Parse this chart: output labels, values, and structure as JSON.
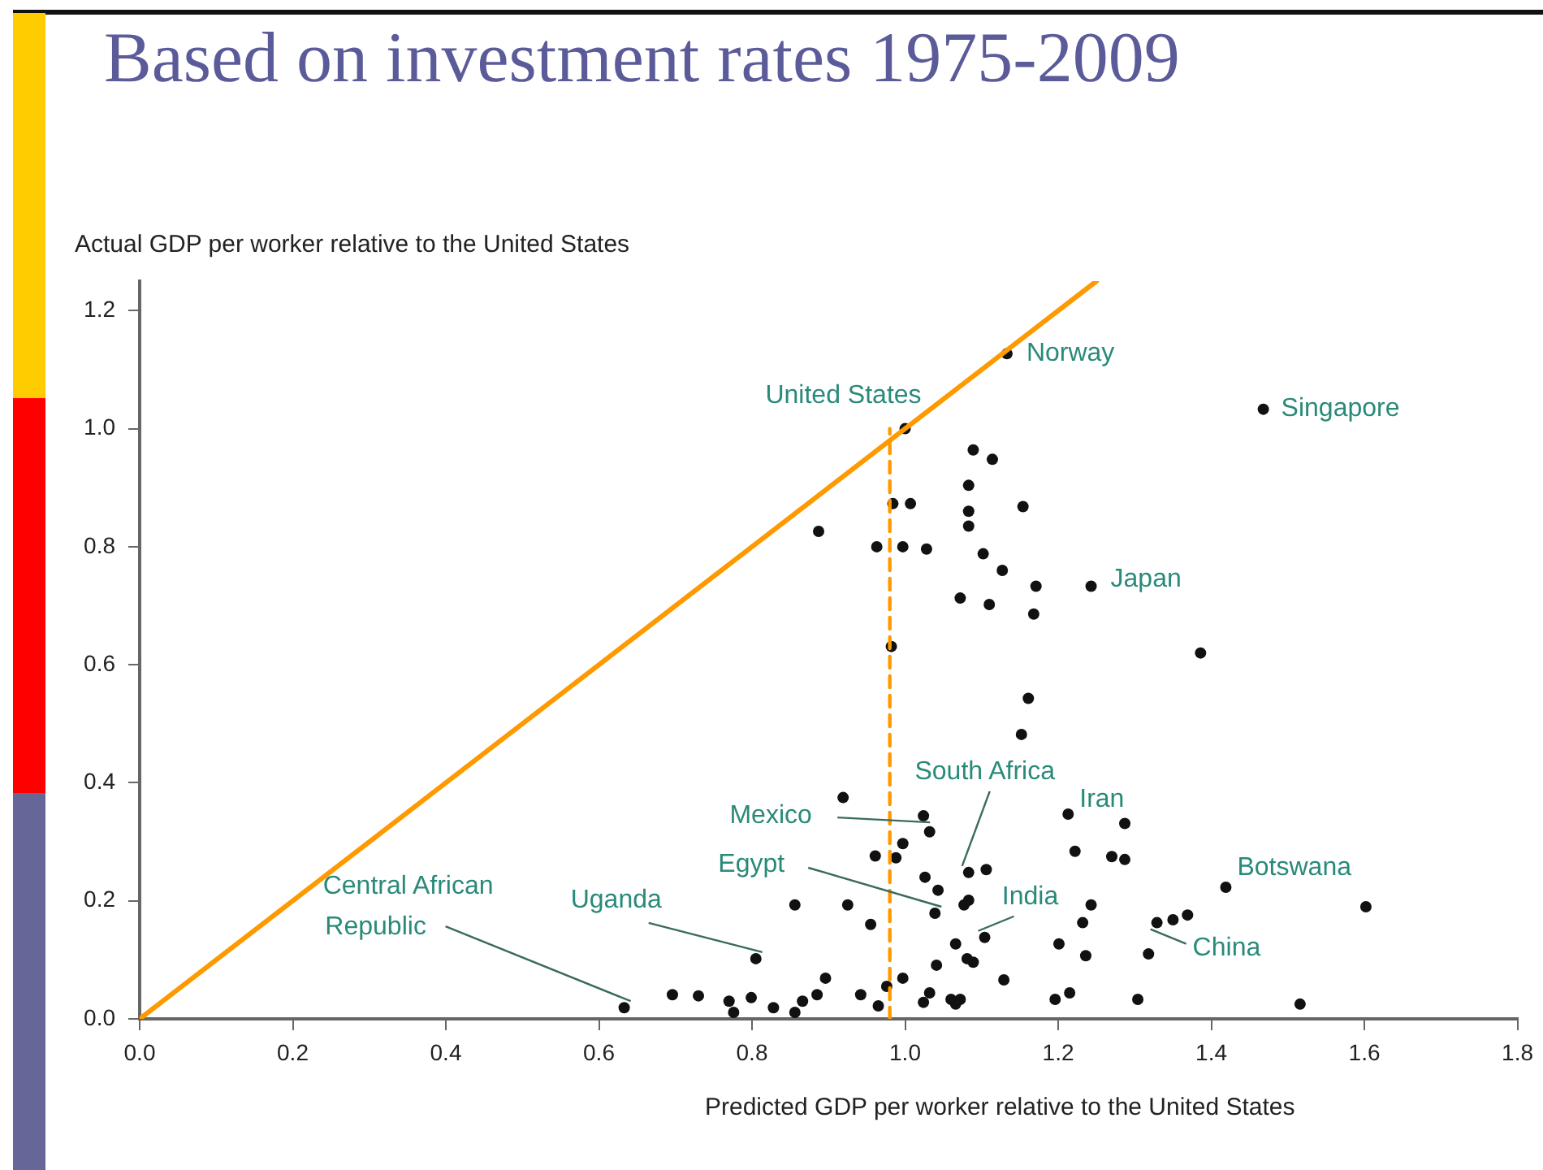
{
  "chart_data": {
    "type": "scatter",
    "title": "Based on investment rates 1975-2009",
    "ylabel": "Actual GDP per worker relative to the United States",
    "xlabel": "Predicted GDP per worker relative to the United States",
    "xlim": [
      0,
      1.8
    ],
    "xticks": [
      {
        "value": 0,
        "label": "0.0"
      },
      {
        "value": 0.2,
        "label": "0.2"
      },
      {
        "value": 0.4,
        "label": "0.4"
      },
      {
        "value": 0.6,
        "label": "0.6"
      },
      {
        "value": 0.8,
        "label": "0.8"
      },
      {
        "value": 1,
        "label": "1.0"
      },
      {
        "value": 1.2,
        "label": "1.2"
      },
      {
        "value": 1.4,
        "label": "1.4"
      },
      {
        "value": 1.6,
        "label": "1.6"
      },
      {
        "value": 1.8,
        "label": "1.8"
      }
    ],
    "ylim": [
      0,
      1.25
    ],
    "yticks": [
      {
        "value": 0,
        "label": "0.0"
      },
      {
        "value": 0.2,
        "label": "0.2"
      },
      {
        "value": 0.4,
        "label": "0.4"
      },
      {
        "value": 0.6,
        "label": "0.6"
      },
      {
        "value": 0.8,
        "label": "0.8"
      },
      {
        "value": 1,
        "label": "1.0"
      },
      {
        "value": 1.2,
        "label": "1.2"
      }
    ],
    "grid": false,
    "legend": false,
    "marker": "circle",
    "series": [
      {
        "type": "line",
        "color": "#ff9900",
        "marker": "none",
        "line_style": "solid",
        "x": [
          0,
          1.25
        ],
        "values": [
          0,
          1.25
        ]
      },
      {
        "type": "line",
        "color": "#ff9900",
        "marker": "none",
        "line_style": "dashed",
        "x": [
          0.98,
          0.98
        ],
        "values": [
          0,
          1
        ]
      },
      {
        "color": "#111111",
        "x": [
          1.133,
          1.0,
          1.468,
          1.089,
          1.114,
          1.083,
          1.083,
          1.083,
          0.984,
          1.007,
          1.154,
          0.887,
          0.963,
          0.997,
          1.028,
          1.102,
          1.127,
          1.072,
          1.11,
          1.171,
          1.168,
          1.243,
          1.386,
          0.982,
          1.161,
          1.152,
          0.919,
          1.024,
          1.032,
          0.997,
          0.961,
          0.988,
          1.026,
          1.043,
          1.039,
          1.083,
          1.106,
          1.077,
          1.083,
          0.856,
          0.925,
          0.955,
          1.213,
          1.287,
          1.222,
          1.27,
          1.287,
          1.419,
          1.243,
          1.232,
          1.329,
          1.35,
          1.369,
          1.318,
          1.104,
          1.066,
          1.081,
          1.089,
          1.201,
          1.236,
          1.041,
          1.129,
          0.805,
          0.896,
          0.885,
          0.866,
          0.997,
          0.976,
          0.942,
          0.965,
          1.024,
          1.032,
          1.06,
          1.072,
          1.066,
          1.196,
          1.215,
          1.304,
          0.73,
          0.77,
          0.776,
          0.799,
          0.828,
          0.856,
          0.633,
          0.696,
          1.602,
          1.516
        ],
        "values": [
          1.127,
          1.0,
          1.033,
          0.964,
          0.948,
          0.904,
          0.86,
          0.835,
          0.873,
          0.873,
          0.868,
          0.826,
          0.8,
          0.8,
          0.796,
          0.788,
          0.76,
          0.713,
          0.702,
          0.733,
          0.686,
          0.733,
          0.62,
          0.631,
          0.543,
          0.482,
          0.375,
          0.344,
          0.317,
          0.297,
          0.276,
          0.273,
          0.24,
          0.218,
          0.179,
          0.248,
          0.253,
          0.193,
          0.201,
          0.193,
          0.193,
          0.16,
          0.347,
          0.331,
          0.284,
          0.275,
          0.27,
          0.223,
          0.193,
          0.163,
          0.163,
          0.168,
          0.176,
          0.11,
          0.138,
          0.127,
          0.102,
          0.096,
          0.127,
          0.107,
          0.091,
          0.066,
          0.102,
          0.069,
          0.041,
          0.03,
          0.069,
          0.055,
          0.041,
          0.022,
          0.028,
          0.044,
          0.033,
          0.033,
          0.025,
          0.033,
          0.044,
          0.033,
          0.039,
          0.03,
          0.011,
          0.036,
          0.019,
          0.011,
          0.019,
          0.041,
          0.19,
          0.025
        ]
      }
    ],
    "annotations": [
      {
        "text": "Norway",
        "x": 1.133,
        "y": 1.127
      },
      {
        "text": "United States",
        "x": 1.0,
        "y": 1.0
      },
      {
        "text": "Singapore",
        "x": 1.468,
        "y": 1.033
      },
      {
        "text": "Japan",
        "x": 1.243,
        "y": 0.733
      },
      {
        "text": "South Africa",
        "x": 1.083,
        "y": 0.248
      },
      {
        "text": "Iran",
        "x": 1.213,
        "y": 0.347
      },
      {
        "text": "Mexico",
        "x": 1.024,
        "y": 0.344
      },
      {
        "text": "Egypt",
        "x": 1.039,
        "y": 0.179
      },
      {
        "text": "India",
        "x": 1.104,
        "y": 0.138
      },
      {
        "text": "Botswana",
        "x": 1.419,
        "y": 0.223
      },
      {
        "text": "China",
        "x": 1.329,
        "y": 0.163
      },
      {
        "text": "Uganda",
        "x": 0.805,
        "y": 0.102
      },
      {
        "text": "Central African Republic",
        "x": 0.633,
        "y": 0.019
      }
    ]
  }
}
